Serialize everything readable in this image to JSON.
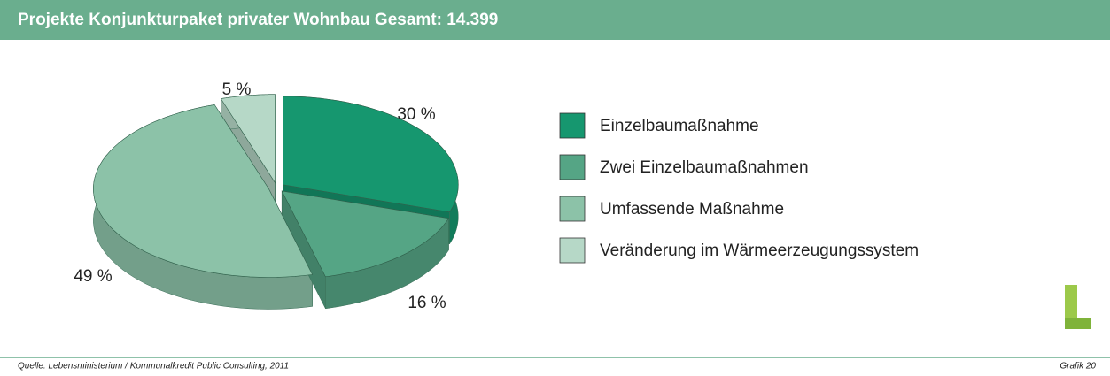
{
  "chart_data": {
    "type": "pie",
    "title": "Projekte Konjunkturpaket privater Wohnbau Gesamt: 14.399",
    "categories": [
      "Einzelbaumaßnahme",
      "Zwei Einzelbaumaßnahmen",
      "Umfassende Maßnahme",
      "Veränderung im Wärmeerzeugungssystem"
    ],
    "values": [
      30,
      16,
      49,
      5
    ],
    "value_labels": [
      "30 %",
      "16 %",
      "49 %",
      "5 %"
    ],
    "colors": [
      "#16976f",
      "#55a585",
      "#8cc2a8",
      "#b6d8c7"
    ],
    "legend": "right",
    "source": "Quelle: Lebensministerium / Kommunalkredit Public Consulting, 2011",
    "caption": "Grafik 20"
  }
}
